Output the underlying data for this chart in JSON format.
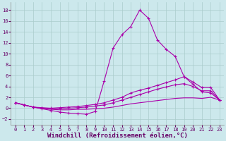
{
  "background_color": "#cce8ec",
  "grid_color": "#aacccc",
  "line_color": "#aa00aa",
  "xlabel": "Windchill (Refroidissement éolien,°C)",
  "xlabel_fontsize": 6.5,
  "yticks": [
    -2,
    0,
    2,
    4,
    6,
    8,
    10,
    12,
    14,
    16,
    18
  ],
  "xticks": [
    0,
    1,
    2,
    3,
    4,
    5,
    6,
    7,
    8,
    9,
    10,
    11,
    12,
    13,
    14,
    15,
    16,
    17,
    18,
    19,
    20,
    21,
    22,
    23
  ],
  "xlim": [
    -0.5,
    23.5
  ],
  "ylim": [
    -3.0,
    19.5
  ],
  "line1_x": [
    0,
    1,
    2,
    3,
    4,
    5,
    6,
    7,
    8,
    9,
    10,
    11,
    12,
    13,
    14,
    15,
    16,
    17,
    18,
    19,
    20,
    21,
    22,
    23
  ],
  "line1_y": [
    1.0,
    0.6,
    0.2,
    -0.1,
    -0.4,
    -0.7,
    -0.9,
    -1.0,
    -1.1,
    -0.6,
    5.0,
    11.0,
    13.5,
    15.0,
    18.0,
    16.5,
    12.5,
    10.8,
    9.5,
    5.8,
    4.4,
    3.0,
    2.8,
    1.5
  ],
  "line2_x": [
    0,
    1,
    2,
    3,
    4,
    5,
    6,
    7,
    8,
    9,
    10,
    11,
    12,
    13,
    14,
    15,
    16,
    17,
    18,
    19,
    20,
    21,
    22,
    23
  ],
  "line2_y": [
    1.0,
    0.6,
    0.2,
    0.1,
    0.0,
    0.1,
    0.2,
    0.3,
    0.5,
    0.7,
    1.0,
    1.5,
    2.0,
    2.8,
    3.3,
    3.7,
    4.2,
    4.7,
    5.2,
    5.8,
    4.8,
    3.8,
    3.8,
    1.5
  ],
  "line3_x": [
    0,
    1,
    2,
    3,
    4,
    5,
    6,
    7,
    8,
    9,
    10,
    11,
    12,
    13,
    14,
    15,
    16,
    17,
    18,
    19,
    20,
    21,
    22,
    23
  ],
  "line3_y": [
    1.0,
    0.6,
    0.2,
    0.0,
    -0.1,
    -0.1,
    0.0,
    0.1,
    0.2,
    0.4,
    0.6,
    1.0,
    1.5,
    2.0,
    2.5,
    3.0,
    3.5,
    3.9,
    4.3,
    4.5,
    4.0,
    3.2,
    3.2,
    1.5
  ],
  "line4_x": [
    0,
    1,
    2,
    3,
    4,
    5,
    6,
    7,
    8,
    9,
    10,
    11,
    12,
    13,
    14,
    15,
    16,
    17,
    18,
    19,
    20,
    21,
    22,
    23
  ],
  "line4_y": [
    1.0,
    0.6,
    0.2,
    0.0,
    -0.2,
    -0.3,
    -0.3,
    -0.2,
    -0.2,
    -0.1,
    0.0,
    0.2,
    0.5,
    0.8,
    1.0,
    1.2,
    1.4,
    1.6,
    1.8,
    1.9,
    1.9,
    1.8,
    2.0,
    1.5
  ]
}
